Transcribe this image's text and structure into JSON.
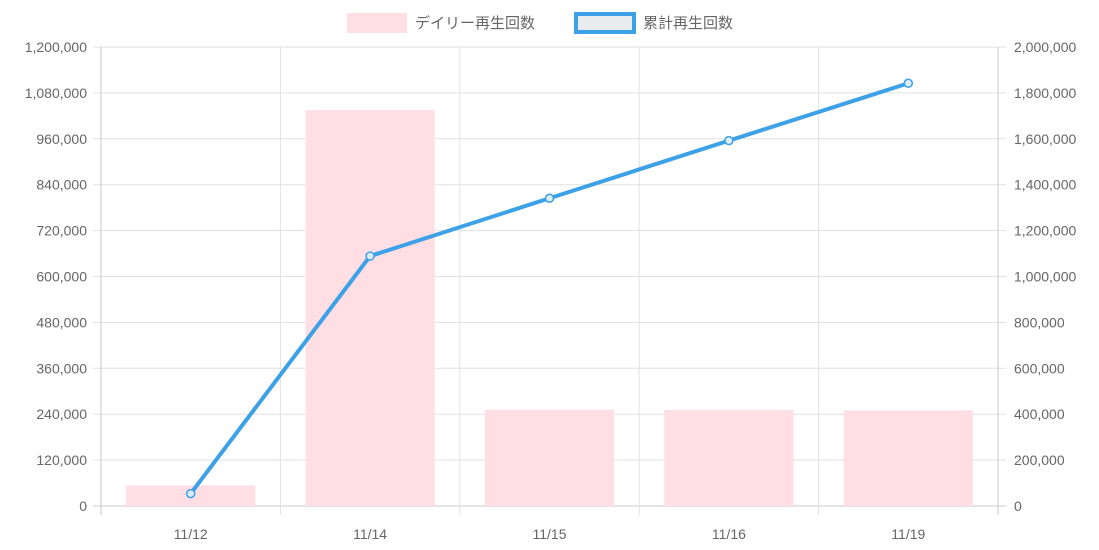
{
  "chart_data": {
    "type": "bar",
    "categories": [
      "11/12",
      "11/14",
      "11/15",
      "11/16",
      "11/19"
    ],
    "series": [
      {
        "name": "デイリー再生回数",
        "type": "bar",
        "axis": "left",
        "values": [
          54000,
          1035000,
          252000,
          251000,
          250000
        ],
        "color": "#ffdee4"
      },
      {
        "name": "累計再生回数",
        "type": "line",
        "axis": "right",
        "values": [
          54000,
          1089000,
          1341000,
          1592000,
          1842000
        ],
        "color": "#3ca1e6"
      }
    ],
    "y_left": {
      "ylim": [
        0,
        1200000
      ],
      "ticks": [
        "0",
        "120,000",
        "240,000",
        "360,000",
        "480,000",
        "600,000",
        "720,000",
        "840,000",
        "960,000",
        "1,080,000",
        "1,200,000"
      ]
    },
    "y_right": {
      "ylim": [
        0,
        2000000
      ],
      "ticks": [
        "0",
        "200,000",
        "400,000",
        "600,000",
        "800,000",
        "1,000,000",
        "1,200,000",
        "1,400,000",
        "1,600,000",
        "1,800,000",
        "2,000,000"
      ]
    },
    "legend_position": "top",
    "grid": true
  }
}
